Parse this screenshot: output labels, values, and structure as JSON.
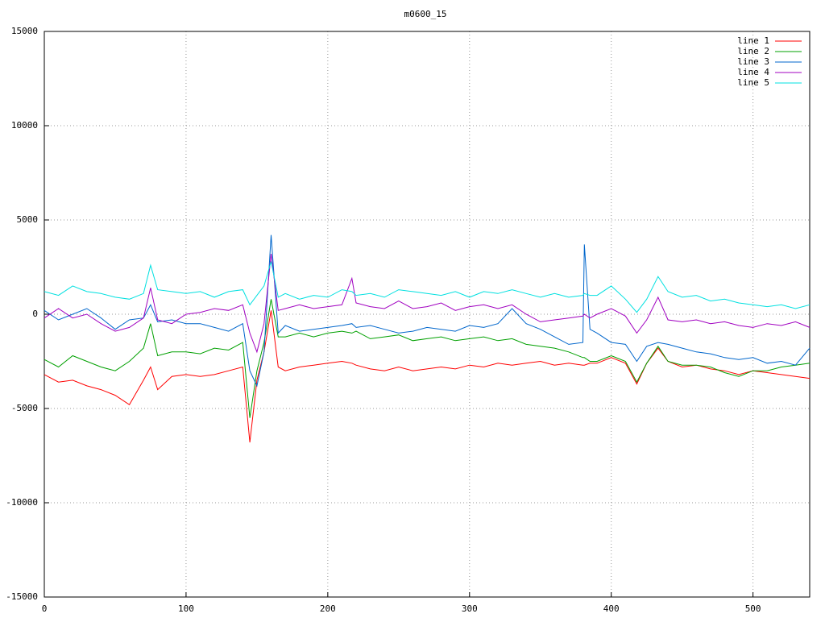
{
  "chart_data": {
    "type": "line",
    "title": "m0600_15",
    "x": [
      0,
      10,
      20,
      30,
      40,
      50,
      60,
      70,
      75,
      80,
      90,
      100,
      110,
      120,
      130,
      140,
      145,
      150,
      155,
      160,
      165,
      170,
      180,
      190,
      200,
      210,
      217,
      220,
      230,
      240,
      250,
      260,
      270,
      280,
      290,
      300,
      310,
      320,
      330,
      340,
      350,
      360,
      370,
      380,
      381,
      385,
      390,
      400,
      410,
      418,
      425,
      433,
      440,
      450,
      460,
      470,
      480,
      490,
      500,
      510,
      520,
      530,
      540
    ],
    "series": [
      {
        "name": "line 1",
        "color": "#ff0000",
        "values": [
          -3200,
          -3600,
          -3500,
          -3800,
          -4000,
          -4300,
          -4800,
          -3500,
          -2800,
          -4000,
          -3300,
          -3200,
          -3300,
          -3200,
          -3000,
          -2800,
          -6800,
          -3500,
          -2000,
          200,
          -2800,
          -3000,
          -2800,
          -2700,
          -2600,
          -2500,
          -2600,
          -2700,
          -2900,
          -3000,
          -2800,
          -3000,
          -2900,
          -2800,
          -2900,
          -2700,
          -2800,
          -2600,
          -2700,
          -2600,
          -2500,
          -2700,
          -2600,
          -2700,
          -2700,
          -2600,
          -2600,
          -2300,
          -2600,
          -3700,
          -2600,
          -1800,
          -2500,
          -2800,
          -2700,
          -2900,
          -3000,
          -3200,
          -3000,
          -3100,
          -3200,
          -3300,
          -3400
        ]
      },
      {
        "name": "line 2",
        "color": "#00a000",
        "values": [
          -2400,
          -2800,
          -2200,
          -2500,
          -2800,
          -3000,
          -2500,
          -1800,
          -500,
          -2200,
          -2000,
          -2000,
          -2100,
          -1800,
          -1900,
          -1500,
          -5500,
          -3000,
          -1500,
          800,
          -1200,
          -1200,
          -1000,
          -1200,
          -1000,
          -900,
          -1000,
          -900,
          -1300,
          -1200,
          -1100,
          -1400,
          -1300,
          -1200,
          -1400,
          -1300,
          -1200,
          -1400,
          -1300,
          -1600,
          -1700,
          -1800,
          -2000,
          -2300,
          -2300,
          -2500,
          -2500,
          -2200,
          -2500,
          -3600,
          -2600,
          -1700,
          -2500,
          -2700,
          -2700,
          -2800,
          -3100,
          -3300,
          -3000,
          -3000,
          -2800,
          -2700,
          -2600
        ]
      },
      {
        "name": "line 3",
        "color": "#0066cc",
        "values": [
          200,
          -300,
          0,
          300,
          -200,
          -800,
          -300,
          -200,
          500,
          -400,
          -300,
          -500,
          -500,
          -700,
          -900,
          -500,
          -3000,
          -3800,
          -2000,
          4200,
          -1000,
          -600,
          -900,
          -800,
          -700,
          -600,
          -500,
          -700,
          -600,
          -800,
          -1000,
          -900,
          -700,
          -800,
          -900,
          -600,
          -700,
          -500,
          300,
          -500,
          -800,
          -1200,
          -1600,
          -1500,
          3700,
          -800,
          -1000,
          -1500,
          -1600,
          -2500,
          -1700,
          -1500,
          -1600,
          -1800,
          -2000,
          -2100,
          -2300,
          -2400,
          -2300,
          -2600,
          -2500,
          -2700,
          -1800
        ]
      },
      {
        "name": "line 4",
        "color": "#a000c0",
        "values": [
          -200,
          300,
          -200,
          0,
          -500,
          -900,
          -700,
          -200,
          1400,
          -300,
          -500,
          0,
          100,
          300,
          200,
          500,
          -1000,
          -2000,
          -500,
          3200,
          200,
          300,
          500,
          300,
          400,
          500,
          1900,
          600,
          400,
          300,
          700,
          300,
          400,
          600,
          200,
          400,
          500,
          300,
          500,
          0,
          -400,
          -300,
          -200,
          -100,
          0,
          -200,
          0,
          300,
          -100,
          -1000,
          -300,
          900,
          -300,
          -400,
          -300,
          -500,
          -400,
          -600,
          -700,
          -500,
          -600,
          -400,
          -700
        ]
      },
      {
        "name": "line 5",
        "color": "#00e0e0",
        "values": [
          1200,
          1000,
          1500,
          1200,
          1100,
          900,
          800,
          1100,
          2600,
          1300,
          1200,
          1100,
          1200,
          900,
          1200,
          1300,
          500,
          1000,
          1500,
          2800,
          900,
          1100,
          800,
          1000,
          900,
          1300,
          1200,
          1000,
          1100,
          900,
          1300,
          1200,
          1100,
          1000,
          1200,
          900,
          1200,
          1100,
          1300,
          1100,
          900,
          1100,
          900,
          1000,
          1100,
          1000,
          1000,
          1500,
          800,
          100,
          800,
          2000,
          1200,
          900,
          1000,
          700,
          800,
          600,
          500,
          400,
          500,
          300,
          500
        ]
      }
    ],
    "xlim": [
      0,
      540
    ],
    "xticks": [
      0,
      100,
      200,
      300,
      400,
      500
    ],
    "ylim": [
      -15000,
      15000
    ],
    "yticks": [
      -15000,
      -10000,
      -5000,
      0,
      5000,
      10000,
      15000
    ],
    "grid": true,
    "legend": "top-right"
  }
}
